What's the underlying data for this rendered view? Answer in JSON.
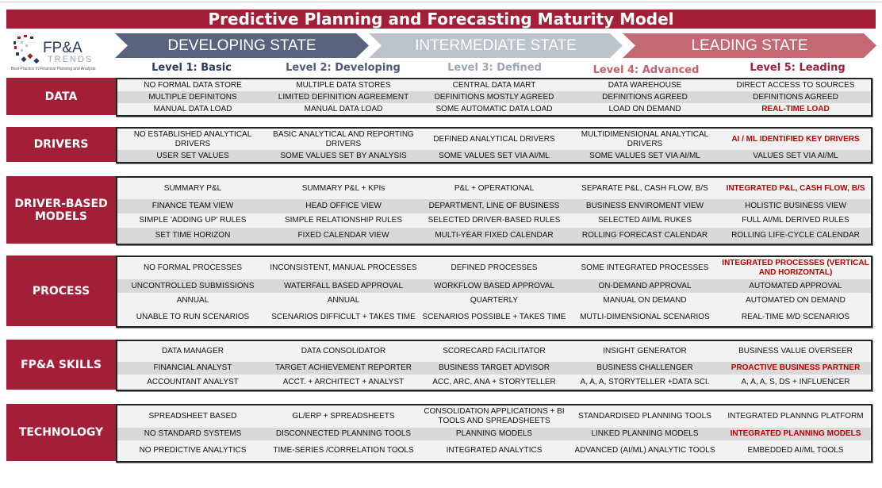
{
  "title": "Predictive Planning and Forecasting Maturity Model",
  "logo": {
    "text": "FP&A",
    "sub": "TRENDS",
    "tagline": "Best Practice in Financial Planning and Analysis"
  },
  "states": [
    {
      "label": "DEVELOPING STATE",
      "color": "#58637d"
    },
    {
      "label": "INTERMEDIATE STATE",
      "color": "#bcc3cc"
    },
    {
      "label": "LEADING STATE",
      "color": "#c46874"
    }
  ],
  "levels": [
    {
      "label": "Level 1: Basic",
      "color": "#2b3a5c"
    },
    {
      "label": "Level 2: Developing",
      "color": "#4e5a78"
    },
    {
      "label": "Level 3: Defined",
      "color": "#9aa6b8"
    },
    {
      "label": "Level 4: Advanced",
      "color": "#c4616f"
    },
    {
      "label": "Level 5: Leading",
      "color": "#a31f37"
    }
  ],
  "colors": {
    "brand": "#a31f37",
    "highlight": "#c00000"
  },
  "sections": [
    {
      "label": "DATA",
      "rows": [
        [
          {
            "t": "NO FORMAL DATA STORE"
          },
          {
            "t": "MULTIPLE DATA STORES"
          },
          {
            "t": "CENTRAL DATA MART"
          },
          {
            "t": "DATA WAREHOUSE"
          },
          {
            "t": "DIRECT ACCESS TO SOURCES"
          }
        ],
        [
          {
            "t": "MULTIPLE DEFINITONS"
          },
          {
            "t": "LIMITED DEFINITION AGREEMENT"
          },
          {
            "t": "DEFINITIONS MOSTLY AGREED"
          },
          {
            "t": "DEFINITIONS AGREED"
          },
          {
            "t": "DEFINITIONS AGREED"
          }
        ],
        [
          {
            "t": "MANUAL DATA LOAD"
          },
          {
            "t": "MANUAL DATA LOAD"
          },
          {
            "t": "SOME AUTOMATIC DATA LOAD"
          },
          {
            "t": "LOAD ON DEMAND"
          },
          {
            "t": "REAL-TIME LOAD",
            "hl": true
          }
        ]
      ]
    },
    {
      "label": "DRIVERS",
      "rows": [
        [
          {
            "t": "NO ESTABLISHED ANALYTICAL DRIVERS"
          },
          {
            "t": "BASIC ANALYTICAL AND REPORTING DRIVERS"
          },
          {
            "t": "DEFINED  ANALYTICAL DRIVERS"
          },
          {
            "t": "MULTIDIMENSIONAL ANALYTICAL DRIVERS"
          },
          {
            "t": "AI / ML IDENTIFIED KEY DRIVERS",
            "hl": true
          }
        ],
        [
          {
            "t": "USER SET VALUES"
          },
          {
            "t": "SOME VALUES SET BY ANALYSIS"
          },
          {
            "t": "SOME VALUES SET VIA AI/ML"
          },
          {
            "t": "SOME VALUES SET VIA AI/ML"
          },
          {
            "t": "VALUES SET VIA AI/ML"
          }
        ]
      ]
    },
    {
      "label": "DRIVER-BASED MODELS",
      "rows": [
        [
          {
            "t": "SUMMARY P&L"
          },
          {
            "t": "SUMMARY P&L + KPIs"
          },
          {
            "t": "P&L + OPERATIONAL"
          },
          {
            "t": "SEPARATE P&L, CASH FLOW, B/S"
          },
          {
            "t": "INTEGRATED P&L, CASH FLOW, B/S",
            "hl": true
          }
        ],
        [
          {
            "t": "FINANCE TEAM VIEW"
          },
          {
            "t": "HEAD OFFICE VIEW"
          },
          {
            "t": "DEPARTMENT, LINE OF BUSINESS"
          },
          {
            "t": "BUSINESS ENVIROMENT VIEW"
          },
          {
            "t": "HOLISTIC BUSINESS VIEW"
          }
        ],
        [
          {
            "t": "SIMPLE 'ADDING UP' RULES"
          },
          {
            "t": "SIMPLE RELATIONSHIP RULES"
          },
          {
            "t": "SELECTED DRIVER-BASED RULES"
          },
          {
            "t": "SELECTED AI/ML RUKES"
          },
          {
            "t": "FULL AI/ML DERIVED RULES"
          }
        ],
        [
          {
            "t": "SET TIME HORIZON"
          },
          {
            "t": "FIXED CALENDAR VIEW"
          },
          {
            "t": "MULTI-YEAR FIXED CALENDAR"
          },
          {
            "t": "ROLLING FORECAST CALENDAR"
          },
          {
            "t": "ROLLING LIFE-CYCLE CALENDAR"
          }
        ]
      ]
    },
    {
      "label": "PROCESS",
      "rows": [
        [
          {
            "t": "NO FORMAL PROCESSES"
          },
          {
            "t": "INCONSISTENT, MANUAL PROCESSES"
          },
          {
            "t": "DEFINED  PROCESSES"
          },
          {
            "t": "SOME INTEGRATED PROCESSES"
          },
          {
            "t": "INTEGRATED PROCESSES (VERTICAL AND HORIZONTAL)",
            "hl": true
          }
        ],
        [
          {
            "t": "UNCONTROLLED SUBMISSIONS"
          },
          {
            "t": "WATERFALL BASED APPROVAL"
          },
          {
            "t": "WORKFLOW BASED APPROVAL"
          },
          {
            "t": "ON-DEMAND APPROVAL"
          },
          {
            "t": "AUTOMATED APPROVAL"
          }
        ],
        [
          {
            "t": "ANNUAL"
          },
          {
            "t": "ANNUAL"
          },
          {
            "t": "QUARTERLY"
          },
          {
            "t": "MANUAL ON DEMAND"
          },
          {
            "t": "AUTOMATED ON DEMAND"
          }
        ],
        [
          {
            "t": "UNABLE TO RUN SCENARIOS"
          },
          {
            "t": "SCENARIOS DIFFICULT + TAKES TIME"
          },
          {
            "t": "SCENARIOS POSSIBLE + TAKES TIME"
          },
          {
            "t": "MUTLI-DIMENSIONAL SCENARIOS"
          },
          {
            "t": "REAL-TIME M/D SCENARIOS"
          }
        ]
      ]
    },
    {
      "label": "FP&A SKILLS",
      "rows": [
        [
          {
            "t": "DATA MANAGER"
          },
          {
            "t": "DATA CONSOLIDATOR"
          },
          {
            "t": "SCORECARD FACILITATOR"
          },
          {
            "t": "INSIGHT GENERATOR"
          },
          {
            "t": "BUSINESS VALUE OVERSEER"
          }
        ],
        [
          {
            "t": "FINANCIAL ANALYST"
          },
          {
            "t": "TARGET ACHIEVEMENT REPORTER"
          },
          {
            "t": "BUSINESS TARGET ADVISOR"
          },
          {
            "t": "BUSINESS  CHALLENGER"
          },
          {
            "t": "PROACTIVE BUSINESS PARTNER",
            "hl": true
          }
        ],
        [
          {
            "t": "ACCOUNTANT ANALYST"
          },
          {
            "t": "ACCT. + ARCHITECT + ANALYST"
          },
          {
            "t": "ACC, ARC, ANA + STORYTELLER"
          },
          {
            "t": "A, A, A, STORYTELLER +DATA SCI."
          },
          {
            "t": "A, A, A, S, DS + INFLUENCER"
          }
        ]
      ]
    },
    {
      "label": "TECHNOLOGY",
      "rows": [
        [
          {
            "t": "SPREADSHEET BASED"
          },
          {
            "t": "GL/ERP + SPREADSHEETS"
          },
          {
            "t": "CONSOLIDATION APPLICATIONS + BI TOOLS AND SPREADSHEETS"
          },
          {
            "t": "STANDARDISED PLANNING TOOLS"
          },
          {
            "t": "INTEGRATED PLANNNG PLATFORM"
          }
        ],
        [
          {
            "t": "NO STANDARD SYSTEMS"
          },
          {
            "t": "DISCONNECTED PLANNING TOOLS"
          },
          {
            "t": "PLANNING MODELS"
          },
          {
            "t": "LINKED PLANNING MODELS"
          },
          {
            "t": "INTEGRATED PLANNING MODELS",
            "hl": true
          }
        ],
        [
          {
            "t": "NO PREDICTIVE ANALYTICS"
          },
          {
            "t": "TIME-SERIES /CORRELATION TOOLS"
          },
          {
            "t": "INTEGRATED ANALYTICS"
          },
          {
            "t": "ADVANCED (AI/ML) ANALYTIC TOOLS"
          },
          {
            "t": "EMBEDDED AI/ML TOOLS"
          }
        ]
      ]
    }
  ]
}
